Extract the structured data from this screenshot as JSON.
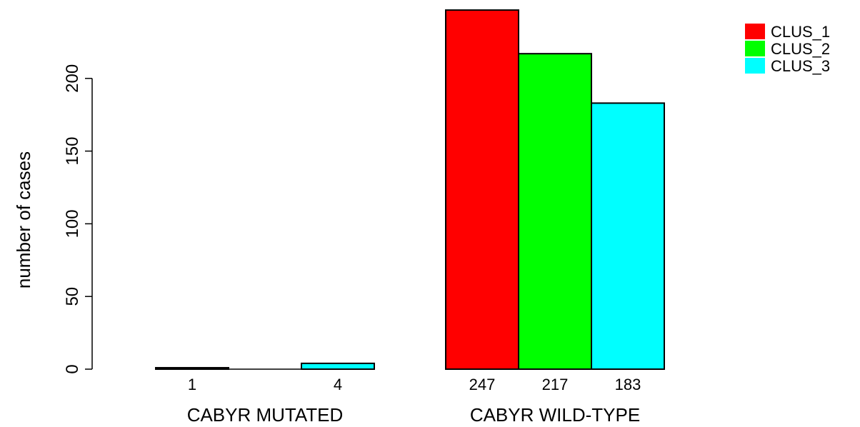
{
  "chart_data": {
    "type": "bar",
    "ylabel": "number of cases",
    "ylim": [
      0,
      250
    ],
    "yticks": [
      0,
      50,
      100,
      150,
      200
    ],
    "grid": false,
    "legend_position": "top-right",
    "groups": [
      {
        "label": "CABYR MUTATED",
        "values": [
          1,
          0,
          4
        ],
        "count_labels": [
          "1",
          "4"
        ]
      },
      {
        "label": "CABYR WILD-TYPE",
        "values": [
          247,
          217,
          183
        ],
        "count_labels": [
          "247",
          "217",
          "183"
        ]
      }
    ],
    "series": [
      {
        "name": "CLUS_1",
        "color": "#ff0000"
      },
      {
        "name": "CLUS_2",
        "color": "#00ff00"
      },
      {
        "name": "CLUS_3",
        "color": "#00ffff"
      }
    ]
  }
}
